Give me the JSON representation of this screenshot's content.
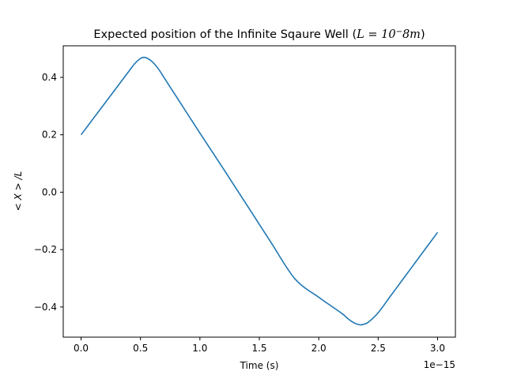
{
  "chart_data": {
    "type": "line",
    "title": "Expected position of the Infinite Sqaure Well (L = 10⁻8m)",
    "title_main": "Expected position of the Infinite Sqaure Well (",
    "title_math": "L = 10",
    "title_sup": "−",
    "title_tail": "8m",
    "title_close": ")",
    "xlabel": "Time (s)",
    "ylabel": "< X > /L",
    "x_offset_label": "1e−15",
    "x_scale": 1e-15,
    "xlim": [
      -0.15,
      3.15
    ],
    "ylim": [
      -0.505,
      0.51
    ],
    "x_ticks": [
      0.0,
      0.5,
      1.0,
      1.5,
      2.0,
      2.5,
      3.0
    ],
    "x_tick_labels": [
      "0.0",
      "0.5",
      "1.0",
      "1.5",
      "2.0",
      "2.5",
      "3.0"
    ],
    "y_ticks": [
      -0.4,
      -0.2,
      0.0,
      0.2,
      0.4
    ],
    "y_tick_labels": [
      "−0.4",
      "−0.2",
      "0.0",
      "0.2",
      "0.4"
    ],
    "grid": false,
    "legend": "none",
    "series": [
      {
        "color": "#1f77b4",
        "x": [
          0.0,
          0.1,
          0.2,
          0.3,
          0.4,
          0.45,
          0.5,
          0.53,
          0.56,
          0.6,
          0.65,
          0.7,
          0.8,
          0.9,
          1.0,
          1.2,
          1.4,
          1.5,
          1.6,
          1.8,
          2.0,
          2.1,
          2.2,
          2.25,
          2.3,
          2.35,
          2.38,
          2.42,
          2.5,
          2.6,
          2.7,
          2.8,
          2.9,
          3.0
        ],
        "y": [
          0.2,
          0.255,
          0.31,
          0.365,
          0.42,
          0.447,
          0.466,
          0.47,
          0.466,
          0.454,
          0.43,
          0.398,
          0.334,
          0.27,
          0.206,
          0.08,
          -0.048,
          -0.112,
          -0.176,
          -0.302,
          -0.366,
          -0.395,
          -0.424,
          -0.442,
          -0.456,
          -0.462,
          -0.46,
          -0.452,
          -0.42,
          -0.364,
          -0.308,
          -0.252,
          -0.196,
          -0.14
        ]
      }
    ]
  }
}
